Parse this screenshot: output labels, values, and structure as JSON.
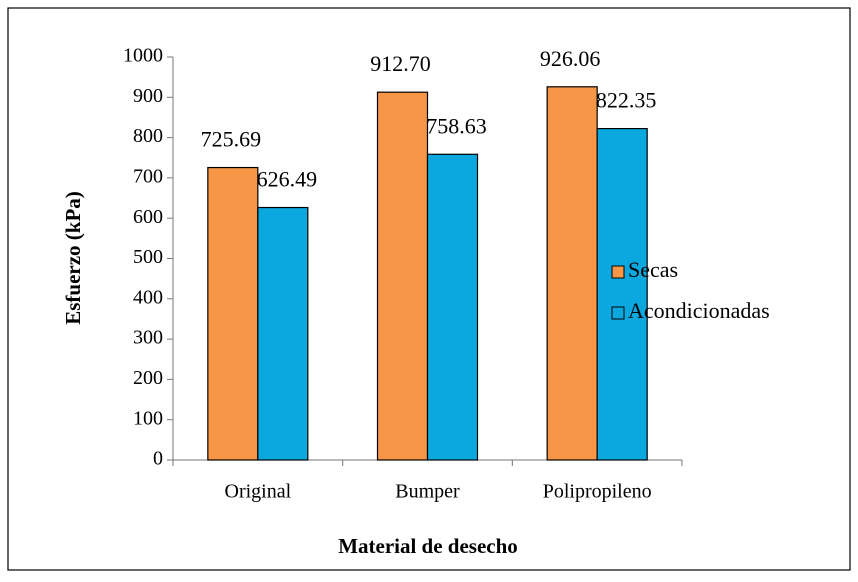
{
  "chart_data": {
    "type": "bar",
    "x_label": "Material de desecho",
    "y_label": "Esfuerzo (kPa)",
    "categories": [
      "Original",
      "Bumper",
      "Polipropileno"
    ],
    "series": [
      {
        "name": "Secas",
        "color": "#f79646",
        "values": [
          725.69,
          912.7,
          926.06
        ],
        "value_labels": [
          "725.69",
          "912.70",
          "926.06"
        ]
      },
      {
        "name": "Acondicionadas",
        "color": "#0ba8e0",
        "values": [
          626.49,
          758.63,
          822.35
        ],
        "value_labels": [
          "626.49",
          "758.63",
          "822.35"
        ]
      }
    ],
    "ylim": [
      0,
      1000
    ],
    "yticks": [
      0,
      100,
      200,
      300,
      400,
      500,
      600,
      700,
      800,
      900,
      1000
    ],
    "legend": "right"
  }
}
